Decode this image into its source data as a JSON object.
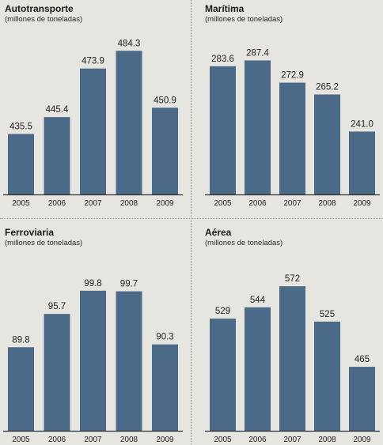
{
  "chart_data": [
    {
      "type": "bar",
      "title": "Autotransporte",
      "subtitle": "(millones de toneladas)",
      "categories": [
        "2005",
        "2006",
        "2007",
        "2008",
        "2009"
      ],
      "values": [
        435.5,
        445.4,
        473.9,
        484.3,
        450.9
      ],
      "value_labels": [
        "435.5",
        "445.4",
        "473.9",
        "484.3",
        "450.9"
      ],
      "color": "#4a6a88"
    },
    {
      "type": "bar",
      "title": "Marítima",
      "subtitle": "(millones de toneladas)",
      "categories": [
        "2005",
        "2006",
        "2007",
        "2008",
        "2009"
      ],
      "values": [
        283.6,
        287.4,
        272.9,
        265.2,
        241.0
      ],
      "value_labels": [
        "283.6",
        "287.4",
        "272.9",
        "265.2",
        "241.0"
      ],
      "color": "#4a6a88"
    },
    {
      "type": "bar",
      "title": "Ferroviaria",
      "subtitle": "(millones de toneladas)",
      "categories": [
        "2005",
        "2006",
        "2007",
        "2008",
        "2009"
      ],
      "values": [
        89.8,
        95.7,
        99.8,
        99.7,
        90.3
      ],
      "value_labels": [
        "89.8",
        "95.7",
        "99.8",
        "99.7",
        "90.3"
      ],
      "color": "#4a6a88"
    },
    {
      "type": "bar",
      "title": "Aérea",
      "subtitle": "(millones de toneladas)",
      "categories": [
        "2005",
        "2006",
        "2007",
        "2008",
        "2009"
      ],
      "values": [
        529,
        544,
        572,
        525,
        465
      ],
      "value_labels": [
        "529",
        "544",
        "572",
        "525",
        "465"
      ],
      "color": "#4a6a88"
    }
  ]
}
